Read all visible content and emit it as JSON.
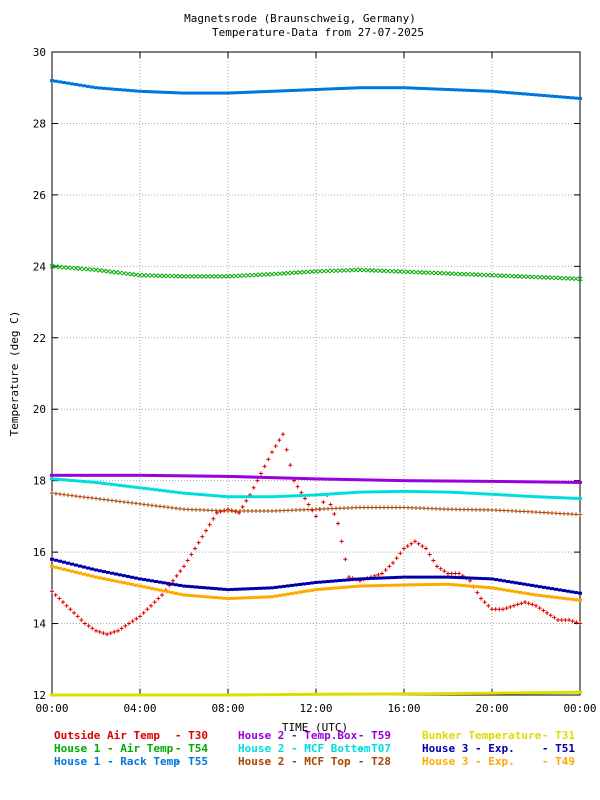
{
  "chart_data": {
    "type": "scatter",
    "title": "Magnetsrode (Braunschweig, Germany)",
    "subtitle": "Temperature-Data from 27-07-2025",
    "xlabel": "TIME (UTC)",
    "ylabel": "Temperature (deg C)",
    "xlim": [
      0,
      24
    ],
    "ylim": [
      12,
      30
    ],
    "xticks": [
      0,
      4,
      8,
      12,
      16,
      20,
      24
    ],
    "xtick_labels": [
      "00:00",
      "04:00",
      "08:00",
      "12:00",
      "16:00",
      "20:00",
      "00:00"
    ],
    "yticks": [
      12,
      14,
      16,
      18,
      20,
      22,
      24,
      26,
      28,
      30
    ],
    "ytick_labels": [
      "12",
      "14",
      "16",
      "18",
      "20",
      "22",
      "24",
      "26",
      "28",
      "30"
    ],
    "grid": true,
    "legend_position": "bottom",
    "series": [
      {
        "name": "Outside Air Temp",
        "code": "T30",
        "color": "#dd0000",
        "marker": "plus",
        "points": [
          [
            0,
            14.9
          ],
          [
            0.5,
            14.6
          ],
          [
            1,
            14.3
          ],
          [
            1.5,
            14
          ],
          [
            2,
            13.8
          ],
          [
            2.5,
            13.7
          ],
          [
            3,
            13.8
          ],
          [
            3.5,
            14
          ],
          [
            4,
            14.2
          ],
          [
            4.5,
            14.5
          ],
          [
            5,
            14.8
          ],
          [
            5.5,
            15.2
          ],
          [
            6,
            15.6
          ],
          [
            6.5,
            16.1
          ],
          [
            7,
            16.6
          ],
          [
            7.5,
            17.1
          ],
          [
            8,
            17.2
          ],
          [
            8.5,
            17.1
          ],
          [
            9,
            17.6
          ],
          [
            9.5,
            18.2
          ],
          [
            10,
            18.8
          ],
          [
            10.5,
            19.3
          ],
          [
            11,
            18
          ],
          [
            11.5,
            17.5
          ],
          [
            12,
            17
          ],
          [
            12.5,
            17.6
          ],
          [
            13,
            16.8
          ],
          [
            13.5,
            15.3
          ],
          [
            14,
            15.2
          ],
          [
            14.5,
            15.3
          ],
          [
            15,
            15.4
          ],
          [
            15.5,
            15.7
          ],
          [
            16,
            16.1
          ],
          [
            16.5,
            16.3
          ],
          [
            17,
            16.1
          ],
          [
            17.5,
            15.6
          ],
          [
            18,
            15.4
          ],
          [
            18.5,
            15.4
          ],
          [
            19,
            15.2
          ],
          [
            19.5,
            14.7
          ],
          [
            20,
            14.4
          ],
          [
            20.5,
            14.4
          ],
          [
            21,
            14.5
          ],
          [
            21.5,
            14.6
          ],
          [
            22,
            14.5
          ],
          [
            22.5,
            14.3
          ],
          [
            23,
            14.1
          ],
          [
            23.5,
            14.1
          ],
          [
            24,
            14.0
          ]
        ]
      },
      {
        "name": "House 1 - Air  Temp",
        "code": "T54",
        "color": "#00aa00",
        "marker": "cross",
        "points": [
          [
            0,
            24
          ],
          [
            2,
            23.9
          ],
          [
            4,
            23.75
          ],
          [
            6,
            23.72
          ],
          [
            8,
            23.72
          ],
          [
            10,
            23.78
          ],
          [
            12,
            23.86
          ],
          [
            14,
            23.9
          ],
          [
            16,
            23.85
          ],
          [
            18,
            23.8
          ],
          [
            20,
            23.75
          ],
          [
            22,
            23.7
          ],
          [
            24,
            23.65
          ]
        ]
      },
      {
        "name": "House 1 - Rack Temp",
        "code": "T55",
        "color": "#0077dd",
        "marker": "square",
        "points": [
          [
            0,
            29.2
          ],
          [
            2,
            29
          ],
          [
            4,
            28.9
          ],
          [
            6,
            28.85
          ],
          [
            8,
            28.85
          ],
          [
            10,
            28.9
          ],
          [
            12,
            28.95
          ],
          [
            14,
            29
          ],
          [
            16,
            29
          ],
          [
            18,
            28.95
          ],
          [
            20,
            28.9
          ],
          [
            22,
            28.8
          ],
          [
            24,
            28.7
          ]
        ]
      },
      {
        "name": "House 2 - Temp.Box",
        "code": "T59",
        "color": "#9900dd",
        "marker": "square",
        "points": [
          [
            0,
            18.15
          ],
          [
            4,
            18.15
          ],
          [
            8,
            18.12
          ],
          [
            12,
            18.05
          ],
          [
            16,
            18
          ],
          [
            20,
            17.98
          ],
          [
            24,
            17.95
          ]
        ]
      },
      {
        "name": "House 2 - MCF Bottom",
        "code": "T07",
        "color": "#00dddd",
        "marker": "square",
        "points": [
          [
            0,
            18.05
          ],
          [
            2,
            17.95
          ],
          [
            4,
            17.8
          ],
          [
            6,
            17.65
          ],
          [
            8,
            17.55
          ],
          [
            10,
            17.55
          ],
          [
            12,
            17.6
          ],
          [
            14,
            17.68
          ],
          [
            16,
            17.7
          ],
          [
            18,
            17.68
          ],
          [
            20,
            17.62
          ],
          [
            22,
            17.55
          ],
          [
            24,
            17.5
          ]
        ]
      },
      {
        "name": "House 2 - MCF Top",
        "code": "T28",
        "color": "#aa4400",
        "marker": "plus",
        "points": [
          [
            0,
            17.65
          ],
          [
            2,
            17.5
          ],
          [
            4,
            17.35
          ],
          [
            6,
            17.2
          ],
          [
            8,
            17.15
          ],
          [
            10,
            17.15
          ],
          [
            12,
            17.2
          ],
          [
            14,
            17.25
          ],
          [
            16,
            17.25
          ],
          [
            18,
            17.2
          ],
          [
            20,
            17.18
          ],
          [
            22,
            17.12
          ],
          [
            24,
            17.05
          ]
        ]
      },
      {
        "name": "Bunker Temperature",
        "code": "T31",
        "color": "#dddd00",
        "marker": "square",
        "points": [
          [
            0,
            12
          ],
          [
            4,
            12
          ],
          [
            8,
            12
          ],
          [
            12,
            12.02
          ],
          [
            16,
            12.03
          ],
          [
            20,
            12.05
          ],
          [
            24,
            12.08
          ]
        ]
      },
      {
        "name": "House 3 - Exp.",
        "code": "T51",
        "color": "#0000aa",
        "marker": "square",
        "points": [
          [
            0,
            15.8
          ],
          [
            2,
            15.5
          ],
          [
            4,
            15.25
          ],
          [
            6,
            15.05
          ],
          [
            8,
            14.95
          ],
          [
            10,
            15
          ],
          [
            12,
            15.15
          ],
          [
            14,
            15.25
          ],
          [
            16,
            15.3
          ],
          [
            18,
            15.3
          ],
          [
            20,
            15.25
          ],
          [
            22,
            15.05
          ],
          [
            24,
            14.85
          ]
        ]
      },
      {
        "name": "House 3 - Exp.",
        "code": "T49",
        "color": "#ffaa00",
        "marker": "square",
        "points": [
          [
            0,
            15.6
          ],
          [
            2,
            15.3
          ],
          [
            4,
            15.05
          ],
          [
            6,
            14.8
          ],
          [
            8,
            14.7
          ],
          [
            10,
            14.75
          ],
          [
            12,
            14.95
          ],
          [
            14,
            15.05
          ],
          [
            16,
            15.08
          ],
          [
            18,
            15.1
          ],
          [
            20,
            15.0
          ],
          [
            22,
            14.8
          ],
          [
            24,
            14.65
          ]
        ]
      }
    ]
  }
}
